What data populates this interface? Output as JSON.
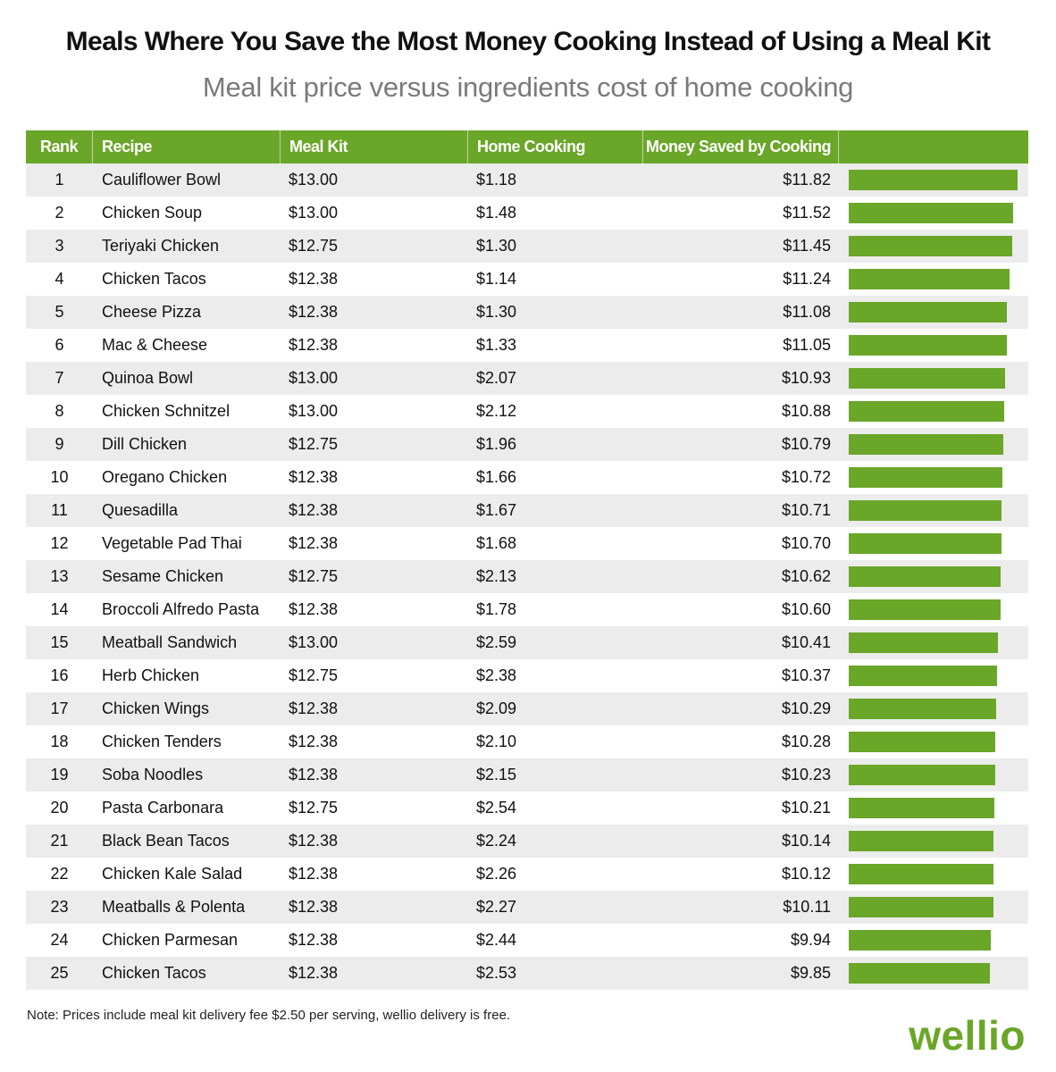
{
  "header": {
    "title": "Meals Where You Save the Most Money Cooking Instead of Using a Meal Kit",
    "subtitle": "Meal kit price versus ingredients cost of home cooking"
  },
  "table": {
    "columns": [
      "Rank",
      "Recipe",
      "Meal Kit",
      "Home Cooking",
      "Money Saved by Cooking",
      ""
    ],
    "rows": [
      {
        "rank": "1",
        "recipe": "Cauliflower Bowl",
        "meal_kit": "$13.00",
        "home_cooking": "$1.18",
        "saved": "$11.82",
        "value": 11.82
      },
      {
        "rank": "2",
        "recipe": "Chicken Soup",
        "meal_kit": "$13.00",
        "home_cooking": "$1.48",
        "saved": "$11.52",
        "value": 11.52
      },
      {
        "rank": "3",
        "recipe": "Teriyaki Chicken",
        "meal_kit": "$12.75",
        "home_cooking": "$1.30",
        "saved": "$11.45",
        "value": 11.45
      },
      {
        "rank": "4",
        "recipe": "Chicken Tacos",
        "meal_kit": "$12.38",
        "home_cooking": "$1.14",
        "saved": "$11.24",
        "value": 11.24
      },
      {
        "rank": "5",
        "recipe": "Cheese Pizza",
        "meal_kit": "$12.38",
        "home_cooking": "$1.30",
        "saved": "$11.08",
        "value": 11.08
      },
      {
        "rank": "6",
        "recipe": "Mac & Cheese",
        "meal_kit": "$12.38",
        "home_cooking": "$1.33",
        "saved": "$11.05",
        "value": 11.05
      },
      {
        "rank": "7",
        "recipe": "Quinoa Bowl",
        "meal_kit": "$13.00",
        "home_cooking": "$2.07",
        "saved": "$10.93",
        "value": 10.93
      },
      {
        "rank": "8",
        "recipe": "Chicken Schnitzel",
        "meal_kit": "$13.00",
        "home_cooking": "$2.12",
        "saved": "$10.88",
        "value": 10.88
      },
      {
        "rank": "9",
        "recipe": "Dill Chicken",
        "meal_kit": "$12.75",
        "home_cooking": "$1.96",
        "saved": "$10.79",
        "value": 10.79
      },
      {
        "rank": "10",
        "recipe": "Oregano Chicken",
        "meal_kit": "$12.38",
        "home_cooking": "$1.66",
        "saved": "$10.72",
        "value": 10.72
      },
      {
        "rank": "11",
        "recipe": "Quesadilla",
        "meal_kit": "$12.38",
        "home_cooking": "$1.67",
        "saved": "$10.71",
        "value": 10.71
      },
      {
        "rank": "12",
        "recipe": "Vegetable Pad Thai",
        "meal_kit": "$12.38",
        "home_cooking": "$1.68",
        "saved": "$10.70",
        "value": 10.7
      },
      {
        "rank": "13",
        "recipe": "Sesame Chicken",
        "meal_kit": "$12.75",
        "home_cooking": "$2.13",
        "saved": "$10.62",
        "value": 10.62
      },
      {
        "rank": "14",
        "recipe": "Broccoli Alfredo Pasta",
        "meal_kit": "$12.38",
        "home_cooking": "$1.78",
        "saved": "$10.60",
        "value": 10.6
      },
      {
        "rank": "15",
        "recipe": "Meatball Sandwich",
        "meal_kit": "$13.00",
        "home_cooking": "$2.59",
        "saved": "$10.41",
        "value": 10.41
      },
      {
        "rank": "16",
        "recipe": "Herb Chicken",
        "meal_kit": "$12.75",
        "home_cooking": "$2.38",
        "saved": "$10.37",
        "value": 10.37
      },
      {
        "rank": "17",
        "recipe": "Chicken Wings",
        "meal_kit": "$12.38",
        "home_cooking": "$2.09",
        "saved": "$10.29",
        "value": 10.29
      },
      {
        "rank": "18",
        "recipe": "Chicken Tenders",
        "meal_kit": "$12.38",
        "home_cooking": "$2.10",
        "saved": "$10.28",
        "value": 10.28
      },
      {
        "rank": "19",
        "recipe": "Soba Noodles",
        "meal_kit": "$12.38",
        "home_cooking": "$2.15",
        "saved": "$10.23",
        "value": 10.23
      },
      {
        "rank": "20",
        "recipe": "Pasta Carbonara",
        "meal_kit": "$12.75",
        "home_cooking": "$2.54",
        "saved": "$10.21",
        "value": 10.21
      },
      {
        "rank": "21",
        "recipe": "Black Bean Tacos",
        "meal_kit": "$12.38",
        "home_cooking": "$2.24",
        "saved": "$10.14",
        "value": 10.14
      },
      {
        "rank": "22",
        "recipe": "Chicken Kale Salad",
        "meal_kit": "$12.38",
        "home_cooking": "$2.26",
        "saved": "$10.12",
        "value": 10.12
      },
      {
        "rank": "23",
        "recipe": "Meatballs & Polenta",
        "meal_kit": "$12.38",
        "home_cooking": "$2.27",
        "saved": "$10.11",
        "value": 10.11
      },
      {
        "rank": "24",
        "recipe": "Chicken Parmesan",
        "meal_kit": "$12.38",
        "home_cooking": "$2.44",
        "saved": "$9.94",
        "value": 9.94
      },
      {
        "rank": "25",
        "recipe": "Chicken Tacos",
        "meal_kit": "$12.38",
        "home_cooking": "$2.53",
        "saved": "$9.85",
        "value": 9.85
      }
    ]
  },
  "footer": {
    "note": "Note: Prices include meal kit delivery fee $2.50 per serving, wellio delivery is free.",
    "logo": "wellio"
  },
  "colors": {
    "accent": "#6aa628",
    "row_alt": "#ececec",
    "subtitle": "#7a7a7a"
  },
  "chart_data": {
    "type": "bar",
    "orientation": "horizontal",
    "title": "Meals Where You Save the Most Money Cooking Instead of Using a Meal Kit",
    "subtitle": "Meal kit price versus ingredients cost of home cooking",
    "xlabel": "Money Saved by Cooking",
    "ylabel": "Recipe",
    "grid": false,
    "legend": null,
    "categories": [
      "Cauliflower Bowl",
      "Chicken Soup",
      "Teriyaki Chicken",
      "Chicken Tacos",
      "Cheese Pizza",
      "Mac & Cheese",
      "Quinoa Bowl",
      "Chicken Schnitzel",
      "Dill Chicken",
      "Oregano Chicken",
      "Quesadilla",
      "Vegetable Pad Thai",
      "Sesame Chicken",
      "Broccoli Alfredo Pasta",
      "Meatball Sandwich",
      "Herb Chicken",
      "Chicken Wings",
      "Chicken Tenders",
      "Soba Noodles",
      "Pasta Carbonara",
      "Black Bean Tacos",
      "Chicken Kale Salad",
      "Meatballs & Polenta",
      "Chicken Parmesan",
      "Chicken Tacos"
    ],
    "series": [
      {
        "name": "Meal Kit",
        "values": [
          13.0,
          13.0,
          12.75,
          12.38,
          12.38,
          12.38,
          13.0,
          13.0,
          12.75,
          12.38,
          12.38,
          12.38,
          12.75,
          12.38,
          13.0,
          12.75,
          12.38,
          12.38,
          12.38,
          12.75,
          12.38,
          12.38,
          12.38,
          12.38,
          12.38
        ]
      },
      {
        "name": "Home Cooking",
        "values": [
          1.18,
          1.48,
          1.3,
          1.14,
          1.3,
          1.33,
          2.07,
          2.12,
          1.96,
          1.66,
          1.67,
          1.68,
          2.13,
          1.78,
          2.59,
          2.38,
          2.09,
          2.1,
          2.15,
          2.54,
          2.24,
          2.26,
          2.27,
          2.44,
          2.53
        ]
      },
      {
        "name": "Money Saved by Cooking",
        "values": [
          11.82,
          11.52,
          11.45,
          11.24,
          11.08,
          11.05,
          10.93,
          10.88,
          10.79,
          10.72,
          10.71,
          10.7,
          10.62,
          10.6,
          10.41,
          10.37,
          10.29,
          10.28,
          10.23,
          10.21,
          10.14,
          10.12,
          10.11,
          9.94,
          9.85
        ]
      }
    ],
    "xlim": [
      0,
      12
    ],
    "annotations": [
      "Note: Prices include meal kit delivery fee $2.50 per serving, wellio delivery is free."
    ]
  }
}
